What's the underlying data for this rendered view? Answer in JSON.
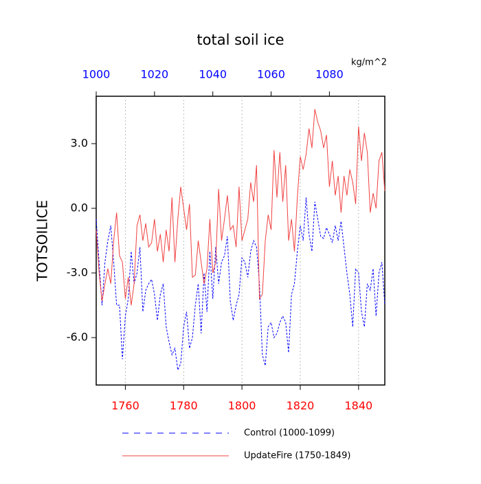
{
  "chart_data": {
    "type": "line",
    "title": "total soil ice",
    "ylabel": "TOTSOILICE",
    "unit_label": "kg/m^2",
    "xlim": [
      1750,
      1849
    ],
    "xticks": [
      1760,
      1780,
      1800,
      1820,
      1840
    ],
    "xtick_color": "#ff0000",
    "x2lim": [
      1000,
      1099
    ],
    "x2ticks": [
      1000,
      1020,
      1040,
      1060,
      1080
    ],
    "x2tick_color": "#0000ff",
    "ylim": [
      -8.2,
      5.2
    ],
    "yticks": [
      {
        "value": 3,
        "label": "3.0"
      },
      {
        "value": 0,
        "label": "0.0"
      },
      {
        "value": -3,
        "label": "-3.0"
      },
      {
        "value": -6,
        "label": "-6.0"
      }
    ],
    "grid": "x",
    "legend": "bottom",
    "series": [
      {
        "name": "Control (1000-1099)",
        "color": "#0000ff",
        "line_style": "dashed",
        "axis": "x2",
        "x": [
          1000,
          1001,
          1002,
          1003,
          1004,
          1005,
          1006,
          1007,
          1008,
          1009,
          1010,
          1011,
          1012,
          1013,
          1014,
          1015,
          1016,
          1017,
          1018,
          1019,
          1020,
          1021,
          1022,
          1023,
          1024,
          1025,
          1026,
          1027,
          1028,
          1029,
          1030,
          1031,
          1032,
          1033,
          1034,
          1035,
          1036,
          1037,
          1038,
          1039,
          1040,
          1041,
          1042,
          1043,
          1044,
          1045,
          1046,
          1047,
          1048,
          1049,
          1050,
          1051,
          1052,
          1053,
          1054,
          1055,
          1056,
          1057,
          1058,
          1059,
          1060,
          1061,
          1062,
          1063,
          1064,
          1065,
          1066,
          1067,
          1068,
          1069,
          1070,
          1071,
          1072,
          1073,
          1074,
          1075,
          1076,
          1077,
          1078,
          1079,
          1080,
          1081,
          1082,
          1083,
          1084,
          1085,
          1086,
          1087,
          1088,
          1089,
          1090,
          1091,
          1092,
          1093,
          1094,
          1095,
          1096,
          1097,
          1098,
          1099
        ],
        "values": [
          -0.5,
          -2.5,
          -4.5,
          -2.5,
          -1.5,
          -0.8,
          -2.5,
          -4.5,
          -4.5,
          -7.0,
          -5.0,
          -4.2,
          -2.0,
          -3.5,
          -3.0,
          -1.8,
          -4.8,
          -3.8,
          -3.5,
          -3.3,
          -4.0,
          -5.2,
          -4.0,
          -3.5,
          -5.5,
          -6.2,
          -6.8,
          -6.5,
          -7.5,
          -7.2,
          -5.5,
          -4.8,
          -6.5,
          -6.0,
          -4.5,
          -3.5,
          -5.8,
          -3.0,
          -4.8,
          -2.0,
          -4.2,
          -1.8,
          -3.5,
          -2.5,
          -2.2,
          -1.3,
          -4.3,
          -5.2,
          -4.5,
          -4.0,
          -2.3,
          -2.5,
          -3.2,
          -2.0,
          -1.5,
          -1.8,
          -3.5,
          -6.8,
          -7.3,
          -5.5,
          -5.3,
          -6.0,
          -5.8,
          -5.3,
          -5.0,
          -5.3,
          -6.7,
          -4.0,
          -3.5,
          -2.0,
          -0.8,
          -1.5,
          0.5,
          -1.2,
          -2.0,
          0.3,
          -0.5,
          -1.3,
          -1.4,
          -0.9,
          -1.2,
          -1.6,
          -0.8,
          -1.5,
          -0.6,
          -1.8,
          -3.0,
          -4.0,
          -5.5,
          -2.8,
          -3.0,
          -4.8,
          -5.5,
          -3.5,
          -3.8,
          -2.8,
          -5.0,
          -3.0,
          -2.5,
          -4.5
        ]
      },
      {
        "name": "UpdateFire (1750-1849)",
        "color": "#f04040",
        "line_style": "solid",
        "axis": "x",
        "x": [
          1750,
          1751,
          1752,
          1753,
          1754,
          1755,
          1756,
          1757,
          1758,
          1759,
          1760,
          1761,
          1762,
          1763,
          1764,
          1765,
          1766,
          1767,
          1768,
          1769,
          1770,
          1771,
          1772,
          1773,
          1774,
          1775,
          1776,
          1777,
          1778,
          1779,
          1780,
          1781,
          1782,
          1783,
          1784,
          1785,
          1786,
          1787,
          1788,
          1789,
          1790,
          1791,
          1792,
          1793,
          1794,
          1795,
          1796,
          1797,
          1798,
          1799,
          1800,
          1801,
          1802,
          1803,
          1804,
          1805,
          1806,
          1807,
          1808,
          1809,
          1810,
          1811,
          1812,
          1813,
          1814,
          1815,
          1816,
          1817,
          1818,
          1819,
          1820,
          1821,
          1822,
          1823,
          1824,
          1825,
          1826,
          1827,
          1828,
          1829,
          1830,
          1831,
          1832,
          1833,
          1834,
          1835,
          1836,
          1837,
          1838,
          1839,
          1840,
          1841,
          1842,
          1843,
          1844,
          1845,
          1846,
          1847,
          1848,
          1849
        ],
        "values": [
          -1.0,
          -3.0,
          -4.3,
          -3.5,
          -2.8,
          -3.5,
          -1.5,
          -0.2,
          -2.2,
          -2.5,
          -4.2,
          -3.2,
          -4.5,
          -3.5,
          -0.8,
          -0.3,
          -1.5,
          -0.7,
          -1.8,
          -1.6,
          -0.5,
          -2.0,
          -1.2,
          -2.5,
          -1.0,
          -2.0,
          0.5,
          -2.5,
          -0.5,
          1.0,
          0.0,
          -1.0,
          0.2,
          -3.2,
          -3.1,
          -1.5,
          -2.5,
          -3.5,
          -2.8,
          -0.5,
          -3.0,
          -2.5,
          0.9,
          -1.5,
          -0.5,
          0.6,
          -1.0,
          -0.8,
          -1.8,
          1.0,
          -1.5,
          -1.0,
          -0.5,
          1.2,
          0.3,
          2.0,
          -4.2,
          -4.0,
          -1.5,
          -0.3,
          -1.0,
          2.7,
          0.5,
          2.6,
          0.3,
          2.0,
          -1.5,
          -0.5,
          -2.0,
          0.5,
          2.4,
          1.8,
          2.5,
          3.7,
          2.8,
          4.6,
          4.0,
          3.6,
          2.8,
          3.4,
          1.0,
          2.2,
          0.6,
          1.5,
          -0.2,
          1.5,
          0.6,
          1.8,
          1.2,
          0.2,
          3.8,
          2.2,
          3.5,
          2.6,
          -0.2,
          0.7,
          0.0,
          2.2,
          2.6,
          0.8
        ]
      }
    ]
  }
}
